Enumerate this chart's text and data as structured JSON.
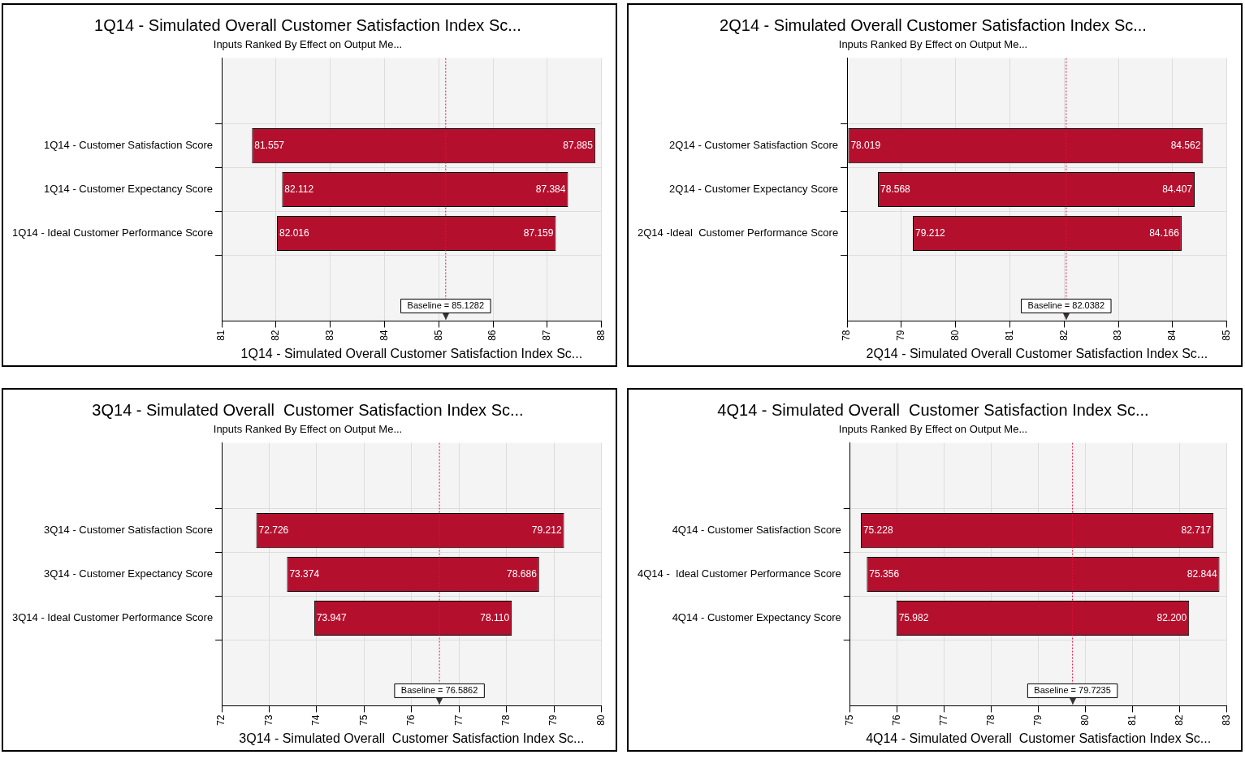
{
  "chart_data": [
    {
      "type": "bar",
      "orientation": "horizontal",
      "title": "1Q14 - Simulated Overall Customer Satisfaction Index Sc...",
      "subtitle": "Inputs Ranked By Effect on Output Me...",
      "xlabel": "1Q14 - Simulated Overall Customer Satisfaction Index Sc...",
      "categories": [
        "1Q14 - Customer Satisfaction Score",
        "1Q14 - Customer Expectancy Score",
        "1Q14 - Ideal Customer Performance Score"
      ],
      "base": [
        81.557,
        82.112,
        82.016
      ],
      "values": [
        6.328,
        5.272,
        5.143
      ],
      "color": "#b50f2e",
      "xlim": [
        81,
        88
      ],
      "xticks": [
        81,
        82,
        83,
        84,
        85,
        86,
        87,
        88
      ],
      "grid": true,
      "ref_lines": [
        {
          "axis": "x",
          "value": 85.1282,
          "label": "Baseline = 85.1282",
          "color": "#e0103a",
          "line_style": "dotted"
        }
      ],
      "annotations": [
        {
          "text": "81.557",
          "x": 81.557,
          "y": "1Q14 - Customer Satisfaction Score"
        },
        {
          "text": "87.885",
          "x": 87.885,
          "y": "1Q14 - Customer Satisfaction Score"
        },
        {
          "text": "82.112",
          "x": 82.112,
          "y": "1Q14 - Customer Expectancy Score"
        },
        {
          "text": "87.384",
          "x": 87.384,
          "y": "1Q14 - Customer Expectancy Score"
        },
        {
          "text": "82.016",
          "x": 82.016,
          "y": "1Q14 - Ideal Customer Performance Score"
        },
        {
          "text": "87.159",
          "x": 87.159,
          "y": "1Q14 - Ideal Customer Performance Score"
        }
      ]
    },
    {
      "type": "bar",
      "orientation": "horizontal",
      "title": "2Q14 - Simulated Overall Customer Satisfaction Index Sc...",
      "subtitle": "Inputs Ranked By Effect on Output Me...",
      "xlabel": "2Q14 - Simulated Overall Customer Satisfaction Index Sc...",
      "categories": [
        "2Q14 - Customer Satisfaction Score",
        "2Q14 - Customer Expectancy Score",
        "2Q14 -Ideal  Customer Performance Score"
      ],
      "base": [
        78.019,
        78.568,
        79.212
      ],
      "values": [
        6.543,
        5.839,
        4.954
      ],
      "color": "#b50f2e",
      "xlim": [
        78,
        85
      ],
      "xticks": [
        78,
        79,
        80,
        81,
        82,
        83,
        84,
        85
      ],
      "grid": true,
      "ref_lines": [
        {
          "axis": "x",
          "value": 82.0382,
          "label": "Baseline = 82.0382",
          "color": "#e0103a",
          "line_style": "dotted"
        }
      ],
      "annotations": [
        {
          "text": "78.019",
          "x": 78.019,
          "y": "2Q14 - Customer Satisfaction Score"
        },
        {
          "text": "84.562",
          "x": 84.562,
          "y": "2Q14 - Customer Satisfaction Score"
        },
        {
          "text": "78.568",
          "x": 78.568,
          "y": "2Q14 - Customer Expectancy Score"
        },
        {
          "text": "84.407",
          "x": 84.407,
          "y": "2Q14 - Customer Expectancy Score"
        },
        {
          "text": "79.212",
          "x": 79.212,
          "y": "2Q14 -Ideal  Customer Performance Score"
        },
        {
          "text": "84.166",
          "x": 84.166,
          "y": "2Q14 -Ideal  Customer Performance Score"
        }
      ]
    },
    {
      "type": "bar",
      "orientation": "horizontal",
      "title": "3Q14 - Simulated Overall  Customer Satisfaction Index Sc...",
      "subtitle": "Inputs Ranked By Effect on Output Me...",
      "xlabel": "3Q14 - Simulated Overall  Customer Satisfaction Index Sc...",
      "categories": [
        "3Q14 - Customer Satisfaction Score",
        "3Q14 - Customer Expectancy Score",
        "3Q14 - Ideal Customer Performance Score"
      ],
      "base": [
        72.726,
        73.374,
        73.947
      ],
      "values": [
        6.486,
        5.312,
        4.163
      ],
      "color": "#b50f2e",
      "xlim": [
        72,
        80
      ],
      "xticks": [
        72,
        73,
        74,
        75,
        76,
        77,
        78,
        79,
        80
      ],
      "grid": true,
      "ref_lines": [
        {
          "axis": "x",
          "value": 76.5862,
          "label": "Baseline = 76.5862",
          "color": "#e0103a",
          "line_style": "dotted"
        }
      ],
      "annotations": [
        {
          "text": "72.726",
          "x": 72.726,
          "y": "3Q14 - Customer Satisfaction Score"
        },
        {
          "text": "79.212",
          "x": 79.212,
          "y": "3Q14 - Customer Satisfaction Score"
        },
        {
          "text": "73.374",
          "x": 73.374,
          "y": "3Q14 - Customer Expectancy Score"
        },
        {
          "text": "78.686",
          "x": 78.686,
          "y": "3Q14 - Customer Expectancy Score"
        },
        {
          "text": "73.947",
          "x": 73.947,
          "y": "3Q14 - Ideal Customer Performance Score"
        },
        {
          "text": "78.110",
          "x": 78.11,
          "y": "3Q14 - Ideal Customer Performance Score"
        }
      ]
    },
    {
      "type": "bar",
      "orientation": "horizontal",
      "title": "4Q14 - Simulated Overall  Customer Satisfaction Index Sc...",
      "subtitle": "Inputs Ranked By Effect on Output Me...",
      "xlabel": "4Q14 - Simulated Overall  Customer Satisfaction Index Sc...",
      "categories": [
        "4Q14 - Customer Satisfaction Score",
        "4Q14 -  Ideal Customer Performance Score",
        "4Q14 - Customer Expectancy Score"
      ],
      "base": [
        75.228,
        75.356,
        75.982
      ],
      "values": [
        7.489,
        7.488,
        6.218
      ],
      "color": "#b50f2e",
      "xlim": [
        75,
        83
      ],
      "xticks": [
        75,
        76,
        77,
        78,
        79,
        80,
        81,
        82,
        83
      ],
      "grid": true,
      "ref_lines": [
        {
          "axis": "x",
          "value": 79.7235,
          "label": "Baseline = 79.7235",
          "color": "#e0103a",
          "line_style": "dotted"
        }
      ],
      "annotations": [
        {
          "text": "75.228",
          "x": 75.228,
          "y": "4Q14 - Customer Satisfaction Score"
        },
        {
          "text": "82.717",
          "x": 82.717,
          "y": "4Q14 - Customer Satisfaction Score"
        },
        {
          "text": "75.356",
          "x": 75.356,
          "y": "4Q14 -  Ideal Customer Performance Score"
        },
        {
          "text": "82.844",
          "x": 82.844,
          "y": "4Q14 -  Ideal Customer Performance Score"
        },
        {
          "text": "75.982",
          "x": 75.982,
          "y": "4Q14 - Customer Expectancy Score"
        },
        {
          "text": "82.200",
          "x": 82.2,
          "y": "4Q14 - Customer Expectancy Score"
        }
      ]
    }
  ]
}
